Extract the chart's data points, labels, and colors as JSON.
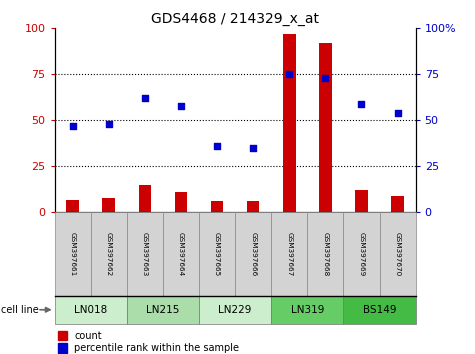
{
  "title": "GDS4468 / 214329_x_at",
  "samples": [
    "GSM397661",
    "GSM397662",
    "GSM397663",
    "GSM397664",
    "GSM397665",
    "GSM397666",
    "GSM397667",
    "GSM397668",
    "GSM397669",
    "GSM397670"
  ],
  "count_values": [
    7,
    8,
    15,
    11,
    6,
    6,
    97,
    92,
    12,
    9
  ],
  "percentile_values": [
    47,
    48,
    62,
    58,
    36,
    35,
    75,
    73,
    59,
    54
  ],
  "cell_lines": [
    {
      "name": "LN018",
      "samples": [
        0,
        1
      ],
      "color": "#cceecc"
    },
    {
      "name": "LN215",
      "samples": [
        2,
        3
      ],
      "color": "#aaddaa"
    },
    {
      "name": "LN229",
      "samples": [
        4,
        5
      ],
      "color": "#cceecc"
    },
    {
      "name": "LN319",
      "samples": [
        6,
        7
      ],
      "color": "#66cc66"
    },
    {
      "name": "BS149",
      "samples": [
        8,
        9
      ],
      "color": "#44bb44"
    }
  ],
  "ylim_left": [
    0,
    100
  ],
  "ylim_right": [
    0,
    100
  ],
  "bar_color": "#cc0000",
  "dot_color": "#0000cc",
  "grid_color": "#000000",
  "yticks": [
    0,
    25,
    50,
    75,
    100
  ],
  "left_tick_color": "#cc0000",
  "right_tick_color": "#0000cc",
  "legend_count_label": "count",
  "legend_percentile_label": "percentile rank within the sample",
  "cell_line_label": "cell line",
  "bar_width": 0.35
}
